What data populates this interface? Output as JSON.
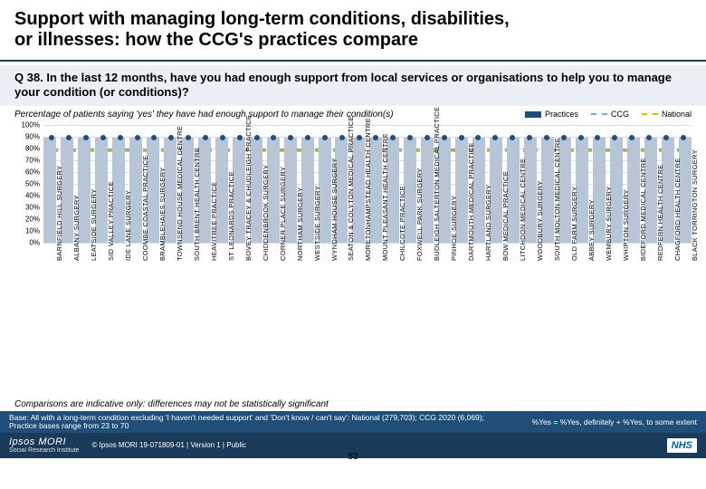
{
  "title_line1": "Support with managing long-term conditions, disabilities,",
  "title_line2": "or illnesses: how the CCG's practices compare",
  "question": "Q 38. In the last 12 months, have you had enough support from local services or organisations to help you to manage your condition (or conditions)?",
  "subtitle": "Percentage of patients saying 'yes' they have had enough support to manage their condition(s)",
  "legend": {
    "practices": "Practices",
    "ccg": "CCG",
    "national": "National"
  },
  "chart": {
    "type": "bar",
    "y_axis": {
      "min": 0,
      "max": 100,
      "step": 10,
      "labels": [
        "0%",
        "10%",
        "20%",
        "30%",
        "40%",
        "50%",
        "60%",
        "70%",
        "80%",
        "90%",
        "100%"
      ]
    },
    "colors": {
      "bar": "#b7c5d6",
      "dot": "#1f4e79",
      "ccg_line": "#6baed6",
      "national_line": "#f2b500",
      "grid": "#d7dce2",
      "bg": "#ffffff"
    },
    "ccg_value": 80,
    "national_value": 78,
    "practices": [
      {
        "label": "BARNFIELD HILL SURGERY",
        "value": 89
      },
      {
        "label": "ALBANY SURGERY",
        "value": 89
      },
      {
        "label": "LEATSIDE SURGERY",
        "value": 89
      },
      {
        "label": "SID VALLEY PRACTICE",
        "value": 89
      },
      {
        "label": "IDE LANE SURGERY",
        "value": 89
      },
      {
        "label": "COOMBE COASTAL PRACTICE",
        "value": 89
      },
      {
        "label": "BRAMBLEHAIES SURGERY",
        "value": 89
      },
      {
        "label": "TOWNSEND HOUSE MEDICAL CENTRE",
        "value": 89
      },
      {
        "label": "SOUTH BRENT HEALTH CENTRE",
        "value": 89
      },
      {
        "label": "HEAVITREE PRACTICE",
        "value": 89
      },
      {
        "label": "ST LEONARDS PRACTICE",
        "value": 89
      },
      {
        "label": "BOVEY TRACEY & CHUDLEIGH PRACTICE",
        "value": 89
      },
      {
        "label": "CHIDDENBROOK SURGERY",
        "value": 89
      },
      {
        "label": "CORNER PLACE SURGERY",
        "value": 89
      },
      {
        "label": "NORTHAM SURGERY",
        "value": 89
      },
      {
        "label": "WESTSIDE SURGERY",
        "value": 89
      },
      {
        "label": "WYNDHAM HOUSE SURGERY",
        "value": 89
      },
      {
        "label": "SEATON & COLYTON MEDICAL PRACTICE",
        "value": 89
      },
      {
        "label": "MORETONHAMPSTEAD HEALTH CENTRE",
        "value": 89
      },
      {
        "label": "MOUNT PLEASANT HEALTH CENTRE",
        "value": 89
      },
      {
        "label": "CHILCOTE PRACTICE",
        "value": 89
      },
      {
        "label": "FOXWELL PARK SURGERY",
        "value": 89
      },
      {
        "label": "BUDLEIGH SALTERTON MEDICAL PRACTICE",
        "value": 89
      },
      {
        "label": "PINHOE SURGERY",
        "value": 89
      },
      {
        "label": "DARTMOUTH MEDICAL PRACTICE",
        "value": 89
      },
      {
        "label": "HARTLAND SURGERY",
        "value": 89
      },
      {
        "label": "BOW MEDICAL PRACTICE",
        "value": 89
      },
      {
        "label": "LITCHDON MEDICAL CENTRE",
        "value": 89
      },
      {
        "label": "WOODBURY SURGERY",
        "value": 89
      },
      {
        "label": "SOUTH MOLTON MEDICAL CENTRE",
        "value": 89
      },
      {
        "label": "OLD FARM SURGERY",
        "value": 89
      },
      {
        "label": "ABBEY SURGERY",
        "value": 89
      },
      {
        "label": "WEMBURY SURGERY",
        "value": 89
      },
      {
        "label": "WHIPTON SURGERY",
        "value": 89
      },
      {
        "label": "BIDEFORD MEDICAL CENTRE",
        "value": 89
      },
      {
        "label": "REDFERN HEALTH CENTRE",
        "value": 89
      },
      {
        "label": "CHAGFORD HEALTH CENTRE",
        "value": 89
      },
      {
        "label": "BLACK TORRINGTON SURGERY",
        "value": 89
      }
    ]
  },
  "comparison_note": "Comparisons are indicative only: differences may not be statistically significant",
  "base_text": "Base: All with a long-term condition excluding 'I haven't needed support' and 'Don't know / can't say': National (279,703); CCG 2020 (6,069); Practice bases range from 23 to 70",
  "yes_definition": "%Yes = %Yes, definitely + %Yes, to some extent",
  "page_number": "53",
  "brand_main": "Ipsos MORI",
  "brand_sub": "Social Research Institute",
  "copyright": "© Ipsos MORI    19-071809-01 | Version 1 | Public",
  "nhs": "NHS"
}
